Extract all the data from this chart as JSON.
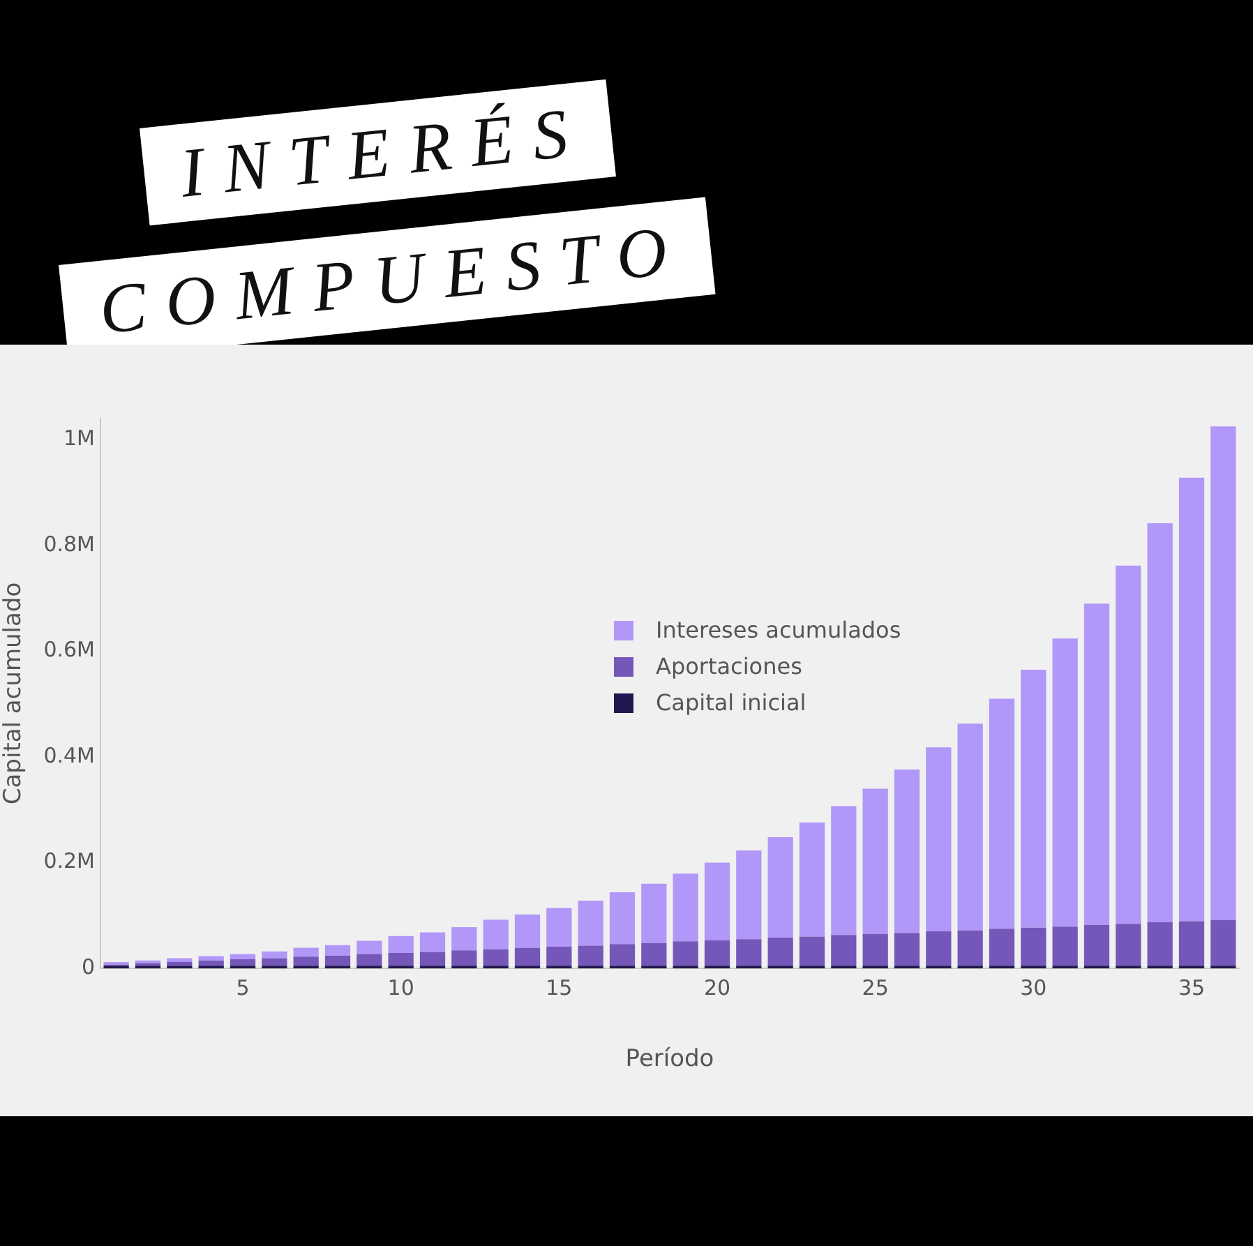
{
  "chart_data": {
    "type": "bar",
    "title": "INTERÉS COMPUESTO",
    "xlabel": "Período",
    "ylabel": "Capital acumulado",
    "stacked": true,
    "legend": "center",
    "grid": false,
    "x": [
      1,
      2,
      3,
      4,
      5,
      6,
      7,
      8,
      9,
      10,
      11,
      12,
      13,
      14,
      15,
      16,
      17,
      18,
      19,
      20,
      21,
      22,
      23,
      24,
      25,
      26,
      27,
      28,
      29,
      30,
      31,
      32,
      33,
      34,
      35,
      36
    ],
    "xlim": [
      0.5,
      36.5
    ],
    "xticks": [
      5,
      10,
      15,
      20,
      25,
      30,
      35
    ],
    "ylim": [
      0,
      1040000
    ],
    "yticks": [
      0,
      {
        "value": 200000,
        "label": "0.2M"
      },
      {
        "value": 400000,
        "label": "0.4M"
      },
      {
        "value": 600000,
        "label": "0.6M"
      },
      {
        "value": 800000,
        "label": "0.8M"
      },
      {
        "value": 1000000,
        "label": "1M"
      }
    ],
    "series": [
      {
        "name": "Capital inicial",
        "color": "#22174f",
        "values": [
          5000,
          5000,
          5000,
          5000,
          5000,
          5000,
          5000,
          5000,
          5000,
          5000,
          5000,
          5000,
          5000,
          5000,
          5000,
          5000,
          5000,
          5000,
          5000,
          5000,
          5000,
          5000,
          5000,
          5000,
          5000,
          5000,
          5000,
          5000,
          5000,
          5000,
          5000,
          5000,
          5000,
          5000,
          5000,
          5000
        ]
      },
      {
        "name": "Aportaciones",
        "color": "#7457b8",
        "values": [
          2000,
          5000,
          7000,
          10000,
          12000,
          14000,
          17000,
          19000,
          22000,
          24000,
          26000,
          29000,
          31000,
          34000,
          36000,
          38000,
          41000,
          43000,
          46000,
          48000,
          50000,
          53000,
          55000,
          58000,
          60000,
          62000,
          65000,
          67000,
          70000,
          72000,
          74000,
          77000,
          79000,
          82000,
          84000,
          86000
        ]
      },
      {
        "name": "Intereses acumulados",
        "color": "#b197f7",
        "values": [
          5000,
          5000,
          7000,
          8000,
          10000,
          13000,
          17000,
          20000,
          25000,
          32000,
          37000,
          44000,
          56000,
          63000,
          73000,
          85000,
          98000,
          112000,
          128000,
          147000,
          168000,
          190000,
          216000,
          244000,
          275000,
          309000,
          348000,
          391000,
          435000,
          488000,
          545000,
          608000,
          678000,
          755000,
          839000,
          934000
        ]
      }
    ]
  }
}
